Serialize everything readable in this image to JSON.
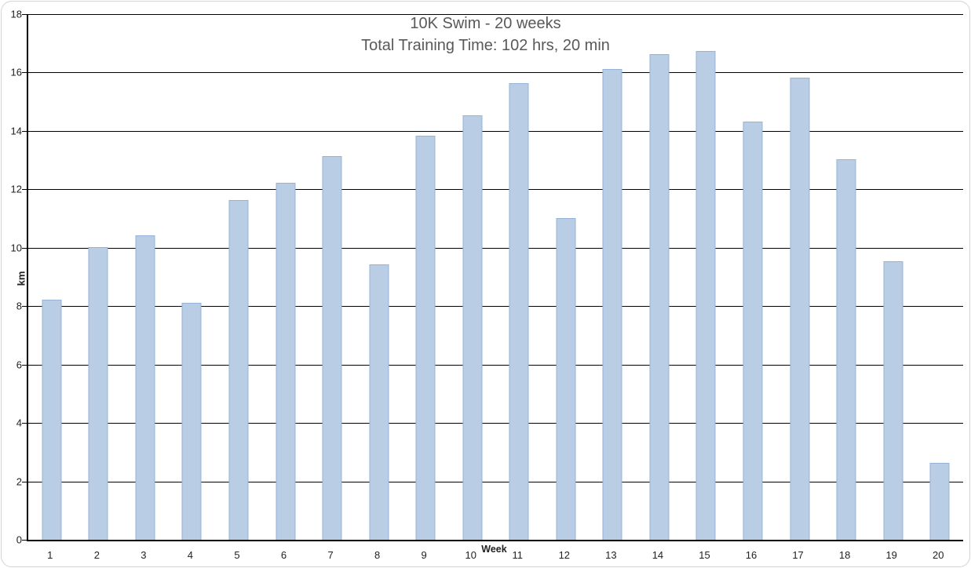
{
  "chart_data": {
    "type": "bar",
    "title": "10K Swim - 20 weeks",
    "subtitle": "Total Training Time: 102 hrs, 20 min",
    "xlabel": "Week",
    "ylabel": "km",
    "categories": [
      "1",
      "2",
      "3",
      "4",
      "5",
      "6",
      "7",
      "8",
      "9",
      "10",
      "11",
      "12",
      "13",
      "14",
      "15",
      "16",
      "17",
      "18",
      "19",
      "20"
    ],
    "values": [
      8.2,
      10.0,
      10.4,
      8.1,
      11.6,
      12.2,
      13.1,
      9.4,
      13.8,
      14.5,
      15.6,
      11.0,
      16.1,
      16.6,
      16.7,
      14.3,
      15.8,
      13.0,
      9.5,
      2.6
    ],
    "ylim": [
      0,
      18
    ],
    "yticks": [
      0,
      2,
      4,
      6,
      8,
      10,
      12,
      14,
      16,
      18
    ],
    "grid": true,
    "legend": "none",
    "colors": {
      "bar_fill": "#b9cde4",
      "bar_border": "#95b3d7",
      "gridline": "#000000",
      "axis": "#000000",
      "title_text": "#595959",
      "tick_text": "#222222",
      "frame_border": "#d3d3d3",
      "background": "#ffffff"
    }
  }
}
